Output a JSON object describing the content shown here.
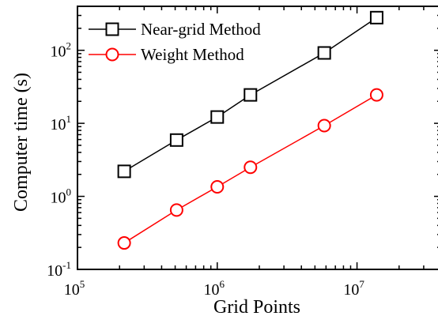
{
  "chart_data": {
    "type": "line",
    "title": "",
    "xlabel": "Grid Points",
    "ylabel": "Computer time (s)",
    "xscale": "log",
    "yscale": "log",
    "xlim": [
      100000,
      40000000
    ],
    "ylim": [
      0.1,
      400
    ],
    "grid": false,
    "legend": "top-left",
    "x_ticks": [
      {
        "value": 100000,
        "base": "10",
        "exp": "5"
      },
      {
        "value": 1000000,
        "base": "10",
        "exp": "6"
      },
      {
        "value": 10000000,
        "base": "10",
        "exp": "7"
      }
    ],
    "y_ticks": [
      {
        "value": 0.1,
        "base": "10",
        "exp": "-1"
      },
      {
        "value": 1,
        "base": "10",
        "exp": "0"
      },
      {
        "value": 10,
        "base": "10",
        "exp": "1"
      },
      {
        "value": 100,
        "base": "10",
        "exp": "2"
      }
    ],
    "series": [
      {
        "name": "Near-grid Method",
        "color": "#000000",
        "marker": "square",
        "x": [
          216000,
          512000,
          1000000,
          1728000,
          5832000,
          13824000
        ],
        "y": [
          2.2,
          5.9,
          12.2,
          24.5,
          92,
          280
        ]
      },
      {
        "name": "Weight Method",
        "color": "#ff0000",
        "marker": "circle",
        "x": [
          216000,
          512000,
          1000000,
          1728000,
          5832000,
          13824000
        ],
        "y": [
          0.23,
          0.65,
          1.35,
          2.5,
          9.3,
          24.5
        ]
      }
    ]
  }
}
